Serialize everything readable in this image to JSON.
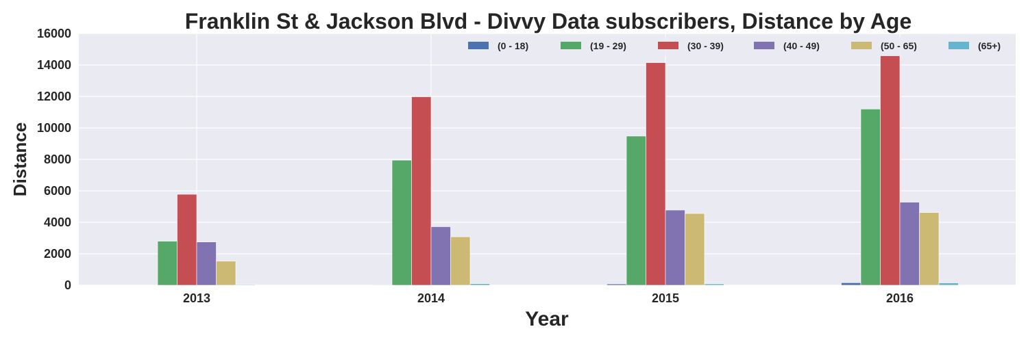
{
  "chart_data": {
    "type": "bar",
    "title": "Franklin St & Jackson Blvd - Divvy Data subscribers, Distance by Age",
    "xlabel": "Year",
    "ylabel": "Distance",
    "categories": [
      "2013",
      "2014",
      "2015",
      "2016"
    ],
    "ylim": [
      0,
      16000
    ],
    "yticks": [
      0,
      2000,
      4000,
      6000,
      8000,
      10000,
      12000,
      14000,
      16000
    ],
    "grid": true,
    "legend_position": "top-right",
    "series": [
      {
        "name": "(0 - 18)",
        "color": "#4c72b0",
        "values": [
          0,
          30,
          80,
          160
        ]
      },
      {
        "name": "(19 - 29)",
        "color": "#55a868",
        "values": [
          2800,
          7950,
          9480,
          11200
        ]
      },
      {
        "name": "(30 - 39)",
        "color": "#c44e52",
        "values": [
          5780,
          11980,
          14150,
          14600
        ]
      },
      {
        "name": "(40 - 49)",
        "color": "#8172b2",
        "values": [
          2750,
          3720,
          4780,
          5280
        ]
      },
      {
        "name": "(50 - 65)",
        "color": "#ccb974",
        "values": [
          1530,
          3080,
          4560,
          4620
        ]
      },
      {
        "name": "(65+)",
        "color": "#64b5cd",
        "values": [
          40,
          100,
          90,
          150
        ]
      }
    ]
  }
}
